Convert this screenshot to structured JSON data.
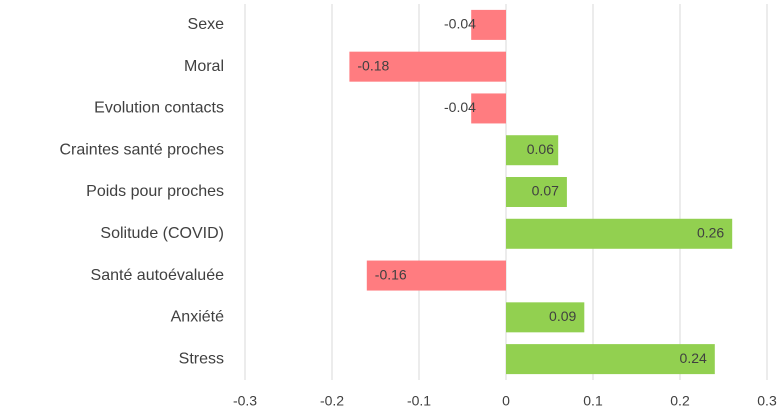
{
  "chart_data": {
    "type": "barh",
    "categories": [
      "Sexe",
      "Moral",
      "Evolution contacts",
      "Craintes santé proches",
      "Poids pour proches",
      "Solitude (COVID)",
      "Santé autoévaluée",
      "Anxiété",
      "Stress"
    ],
    "values": [
      -0.04,
      -0.18,
      -0.04,
      0.06,
      0.07,
      0.26,
      -0.16,
      0.09,
      0.24
    ],
    "colors": {
      "positive": "#92d050",
      "negative": "#ff7c80"
    },
    "xlim": [
      -0.3,
      0.3
    ],
    "xticks": [
      -0.3,
      -0.2,
      -0.1,
      0,
      0.1,
      0.2,
      0.3
    ],
    "grid": true
  }
}
